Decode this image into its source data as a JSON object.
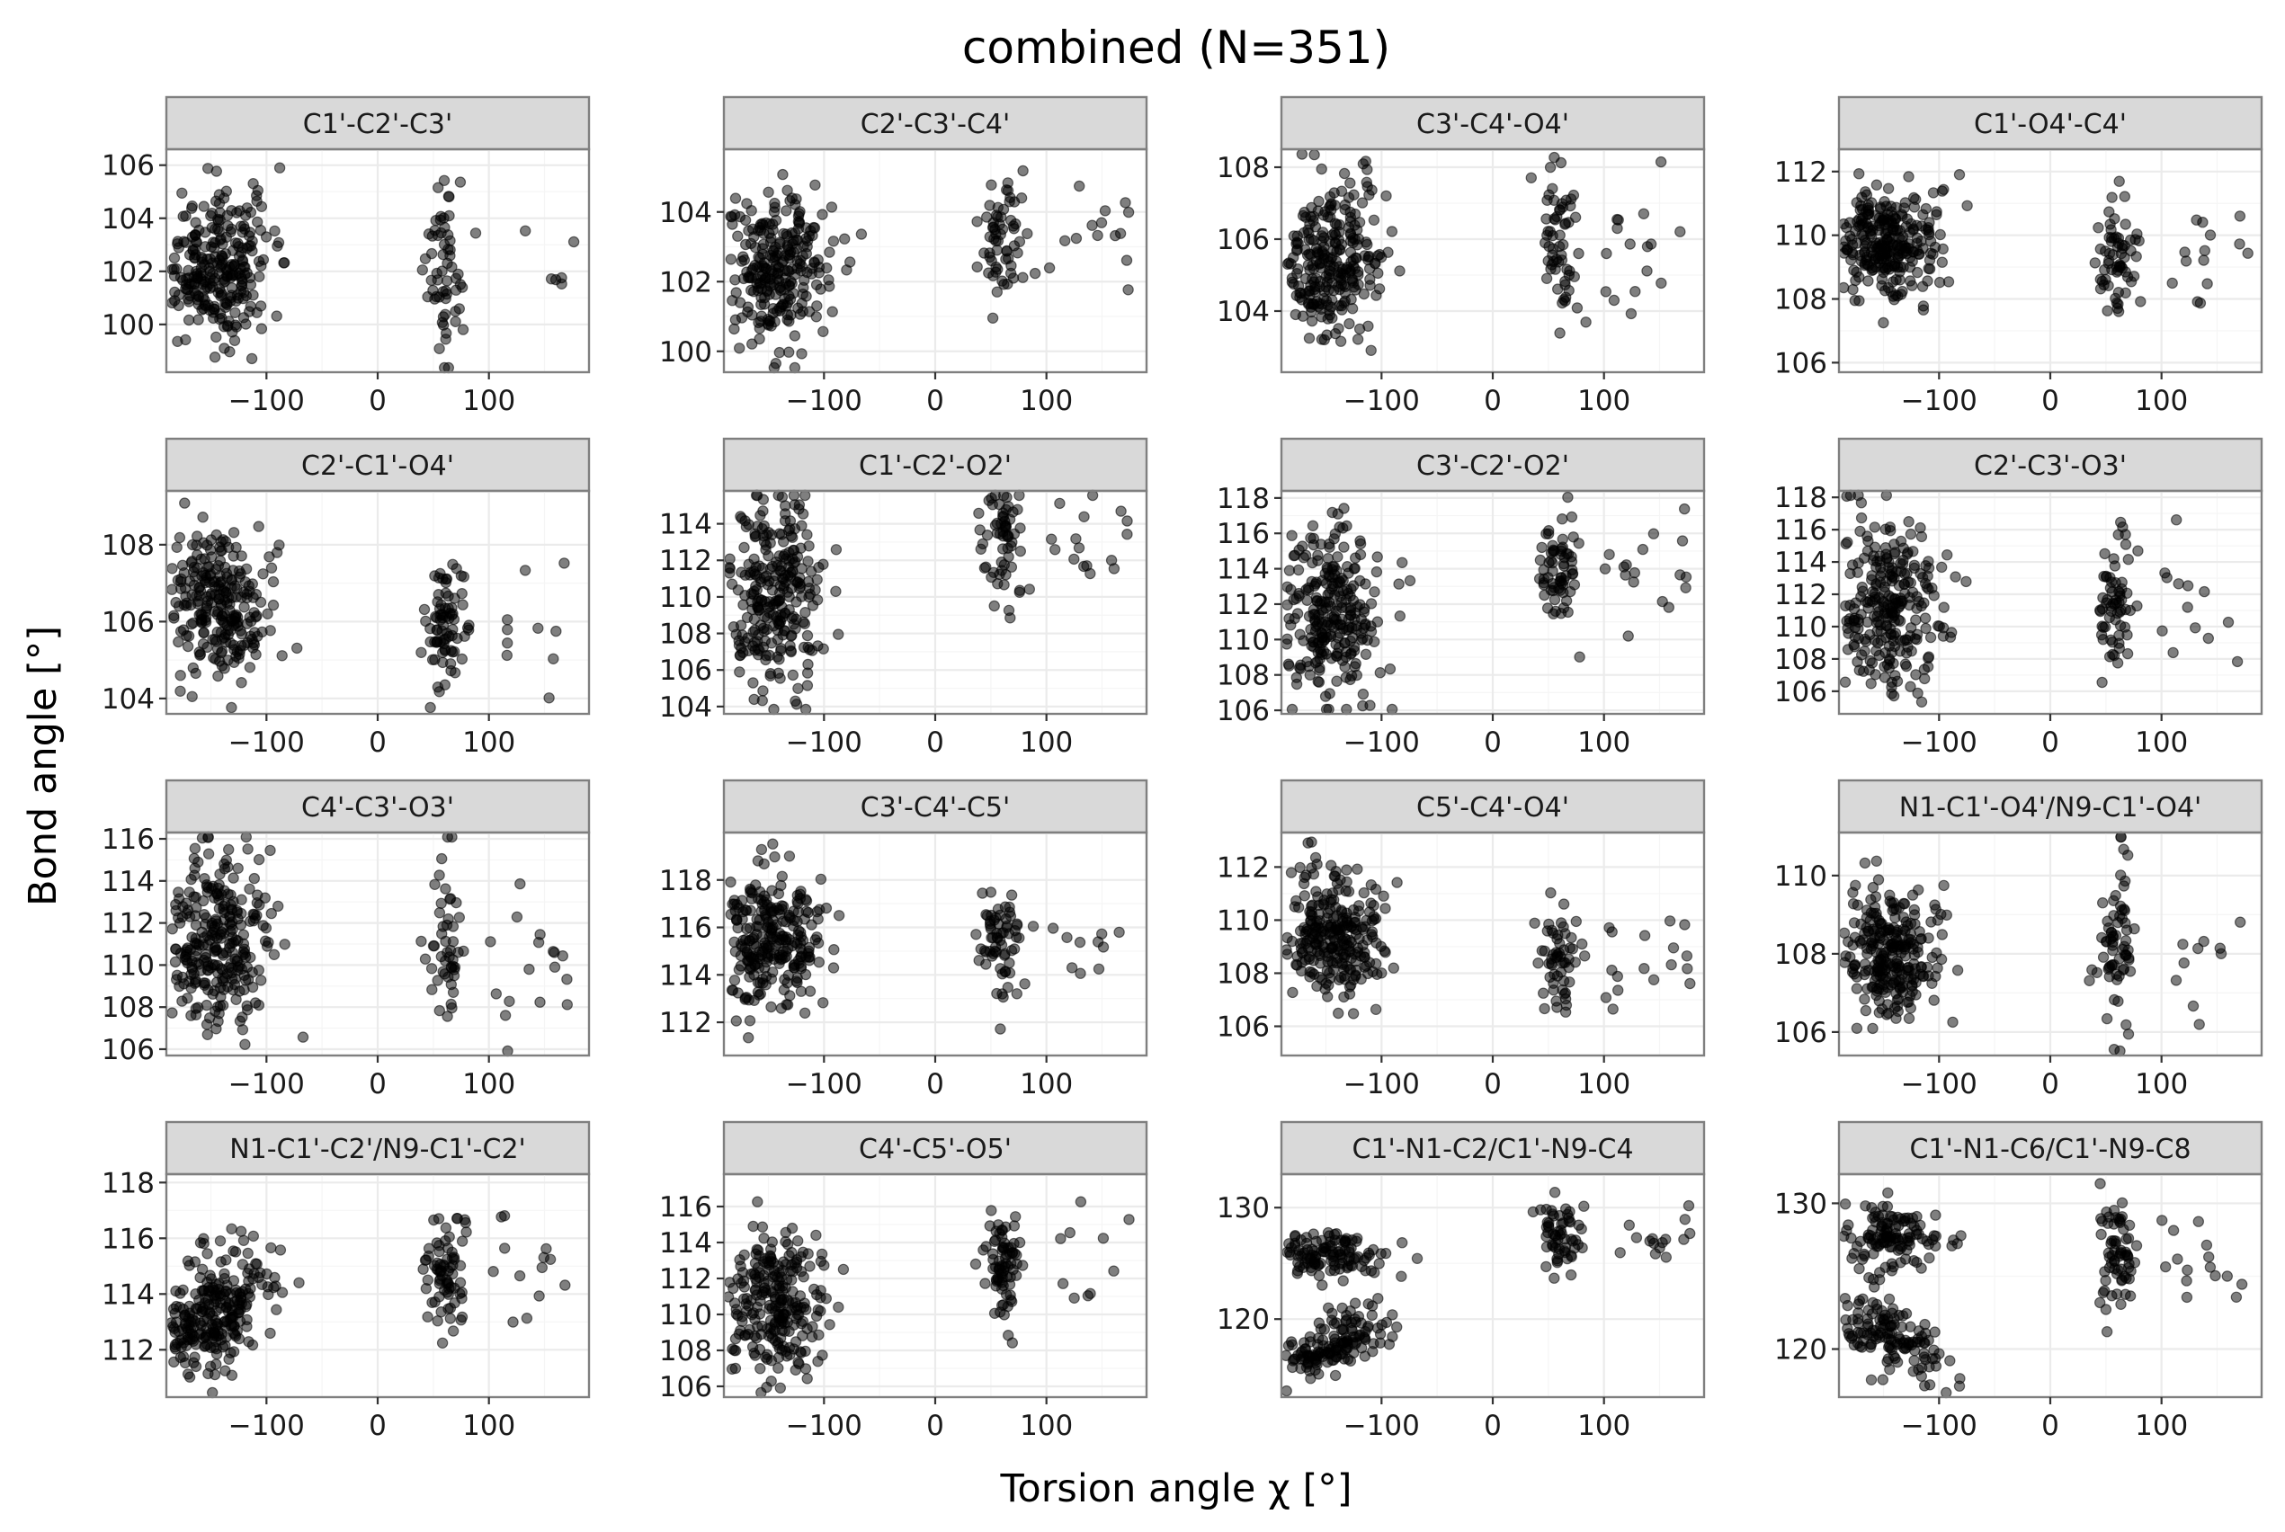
{
  "title": "combined (N=351)",
  "xlabel": "Torsion angle χ [°]",
  "ylabel": "Bond angle [°]",
  "xticks": [
    -100,
    0,
    100
  ],
  "xtick_labels": [
    "−100",
    "0",
    "100"
  ],
  "xlim": [
    -190,
    190
  ],
  "colors": {
    "point": "#000000",
    "strip": "#d9d9d9",
    "border": "#7f7f7f",
    "grid": "#ebebeb"
  },
  "chart_data": [
    {
      "type": "scatter",
      "strip": "C1'-C2'-C3'",
      "ylim": [
        98.2,
        106.6
      ],
      "yticks": [
        100,
        102,
        104,
        106
      ],
      "center": 102.0,
      "spread": 1.3,
      "hi_offset": 0.0,
      "hi_spread": 1.5,
      "corr": 0.0,
      "seed": 11
    },
    {
      "type": "scatter",
      "strip": "C2'-C3'-C4'",
      "ylim": [
        99.4,
        105.8
      ],
      "yticks": [
        100,
        102,
        104
      ],
      "center": 102.3,
      "spread": 1.0,
      "hi_offset": 0.8,
      "hi_spread": 1.0,
      "corr": 0.004,
      "seed": 23
    },
    {
      "type": "scatter",
      "strip": "C3'-C4'-O4'",
      "ylim": [
        102.3,
        108.5
      ],
      "yticks": [
        104,
        106,
        108
      ],
      "center": 105.4,
      "spread": 1.1,
      "hi_offset": 0.7,
      "hi_spread": 1.1,
      "corr": 0.006,
      "seed": 37
    },
    {
      "type": "scatter",
      "strip": "C1'-O4'-C4'",
      "ylim": [
        105.7,
        112.7
      ],
      "yticks": [
        106,
        108,
        110,
        112
      ],
      "center": 109.8,
      "spread": 0.9,
      "hi_offset": -0.4,
      "hi_spread": 0.8,
      "corr": 0.0,
      "seed": 41
    },
    {
      "type": "scatter",
      "strip": "C2'-C1'-O4'",
      "ylim": [
        103.6,
        109.4
      ],
      "yticks": [
        104,
        106,
        108
      ],
      "center": 106.5,
      "spread": 0.9,
      "hi_offset": -0.6,
      "hi_spread": 0.8,
      "corr": -0.006,
      "seed": 53
    },
    {
      "type": "scatter",
      "strip": "C1'-C2'-O2'",
      "ylim": [
        103.6,
        115.8
      ],
      "yticks": [
        104,
        106,
        108,
        110,
        112,
        114
      ],
      "center": 110.0,
      "spread": 2.6,
      "hi_offset": 3.2,
      "hi_spread": 1.5,
      "corr": 0.0,
      "seed": 67
    },
    {
      "type": "scatter",
      "strip": "C3'-C2'-O2'",
      "ylim": [
        105.8,
        118.4
      ],
      "yticks": [
        106,
        108,
        110,
        112,
        114,
        116,
        118
      ],
      "center": 111.5,
      "spread": 2.5,
      "hi_offset": 2.5,
      "hi_spread": 1.7,
      "corr": 0.0,
      "seed": 71
    },
    {
      "type": "scatter",
      "strip": "C2'-C3'-O3'",
      "ylim": [
        104.6,
        118.4
      ],
      "yticks": [
        106,
        108,
        110,
        112,
        114,
        116,
        118
      ],
      "center": 111.5,
      "spread": 2.6,
      "hi_offset": -0.5,
      "hi_spread": 2.4,
      "corr": 0.0,
      "seed": 83
    },
    {
      "type": "scatter",
      "strip": "C4'-C3'-O3'",
      "ylim": [
        105.7,
        116.3
      ],
      "yticks": [
        106,
        108,
        110,
        112,
        114,
        116
      ],
      "center": 111.0,
      "spread": 2.1,
      "hi_offset": -0.7,
      "hi_spread": 2.1,
      "corr": 0.0,
      "seed": 97
    },
    {
      "type": "scatter",
      "strip": "C3'-C4'-C5'",
      "ylim": [
        110.6,
        120.0
      ],
      "yticks": [
        112,
        114,
        116,
        118
      ],
      "center": 115.4,
      "spread": 1.4,
      "hi_offset": -0.3,
      "hi_spread": 1.1,
      "corr": 0.0,
      "seed": 101
    },
    {
      "type": "scatter",
      "strip": "C5'-C4'-O4'",
      "ylim": [
        104.9,
        113.3
      ],
      "yticks": [
        106,
        108,
        110,
        112
      ],
      "center": 109.4,
      "spread": 1.2,
      "hi_offset": -0.9,
      "hi_spread": 1.0,
      "corr": -0.006,
      "seed": 113
    },
    {
      "type": "scatter",
      "strip": "N1-C1'-O4'/N9-C1'-O4'",
      "ylim": [
        105.4,
        111.1
      ],
      "yticks": [
        106,
        108,
        110
      ],
      "center": 108.0,
      "spread": 0.8,
      "hi_offset": 0.3,
      "hi_spread": 1.0,
      "corr": 0.0,
      "seed": 127
    },
    {
      "type": "scatter",
      "strip": "N1-C1'-C2'/N9-C1'-C2'",
      "ylim": [
        110.3,
        118.3
      ],
      "yticks": [
        112,
        114,
        116,
        118
      ],
      "center": 113.4,
      "spread": 1.1,
      "hi_offset": 1.4,
      "hi_spread": 1.0,
      "corr": 0.022,
      "seed": 131
    },
    {
      "type": "scatter",
      "strip": "C4'-C5'-O5'",
      "ylim": [
        105.4,
        117.8
      ],
      "yticks": [
        106,
        108,
        110,
        112,
        114,
        116
      ],
      "center": 110.5,
      "spread": 1.9,
      "hi_offset": 2.3,
      "hi_spread": 1.7,
      "corr": 0.0,
      "seed": 139
    },
    {
      "type": "scatter",
      "strip": "C1'-N1-C2/C1'-N9-C4",
      "ylim": [
        113.0,
        133.0
      ],
      "yticks": [
        120,
        130
      ],
      "bimodal": true,
      "lo_center": 117.8,
      "lo_spread": 1.3,
      "up_center": 125.8,
      "up_spread": 1.0,
      "hi_center": 127.5,
      "hi_spread": 1.6,
      "corr": 0.02,
      "seed": 149
    },
    {
      "type": "scatter",
      "strip": "C1'-N1-C6/C1'-N9-C8",
      "ylim": [
        116.7,
        132.0
      ],
      "yticks": [
        120,
        130
      ],
      "bimodal": true,
      "lo_center": 121.0,
      "lo_spread": 1.2,
      "up_center": 127.7,
      "up_spread": 1.2,
      "hi_center": 126.5,
      "hi_spread": 2.0,
      "corr": -0.02,
      "seed": 151
    }
  ]
}
